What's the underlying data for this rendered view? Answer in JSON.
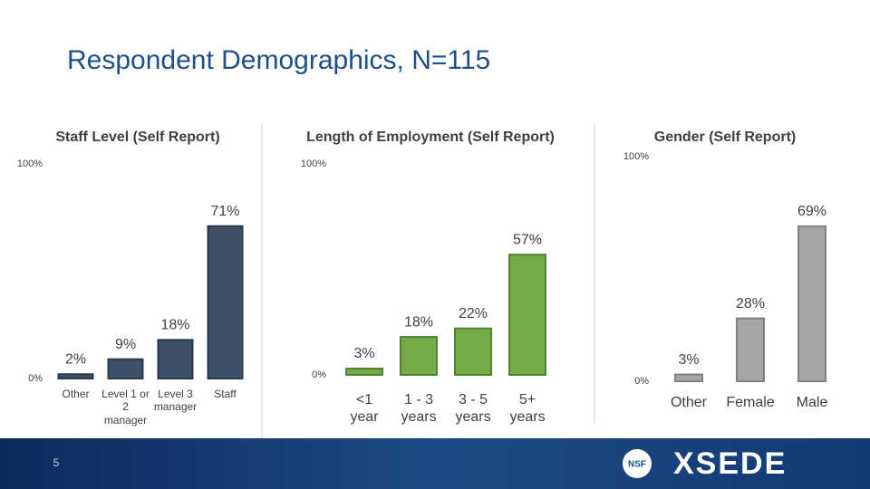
{
  "slide": {
    "title": "Respondent Demographics, N=115",
    "page_number": "5",
    "logo": "XSEDE",
    "logo_badge": "NSF"
  },
  "chart_data": [
    {
      "type": "bar",
      "title": "Staff Level (Self Report)",
      "categories": [
        "Other",
        "Level 1 or 2 manager",
        "Level 3 manager",
        "Staff"
      ],
      "values": [
        2,
        9,
        18,
        71
      ],
      "value_labels": [
        "2%",
        "9%",
        "18%",
        "71%"
      ],
      "color": "#3f4f66",
      "edge_color": "#2e3a4d",
      "ylim": [
        0,
        100
      ],
      "yticks": [
        {
          "value": 0,
          "label": "0%"
        },
        {
          "value": 100,
          "label": "100%"
        }
      ]
    },
    {
      "type": "bar",
      "title": "Length of Employment (Self Report)",
      "categories": [
        "<1 year",
        "1 - 3 years",
        "3 - 5 years",
        "5+ years"
      ],
      "values": [
        3,
        18,
        22,
        57
      ],
      "value_labels": [
        "3%",
        "18%",
        "22%",
        "57%"
      ],
      "color": "#70ad47",
      "edge_color": "#548235",
      "ylim": [
        0,
        100
      ],
      "yticks": [
        {
          "value": 0,
          "label": "0%"
        },
        {
          "value": 100,
          "label": "100%"
        }
      ]
    },
    {
      "type": "bar",
      "title": "Gender (Self Report)",
      "categories": [
        "Other",
        "Female",
        "Male"
      ],
      "values": [
        3,
        28,
        69
      ],
      "value_labels": [
        "3%",
        "28%",
        "69%"
      ],
      "color": "#a5a5a5",
      "edge_color": "#7f7f7f",
      "ylim": [
        0,
        100
      ],
      "yticks": [
        {
          "value": 0,
          "label": "0%"
        },
        {
          "value": 100,
          "label": "100%"
        }
      ]
    }
  ]
}
